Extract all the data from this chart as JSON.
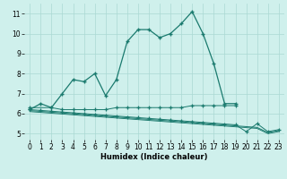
{
  "xlabel": "Humidex (Indice chaleur)",
  "x": [
    0,
    1,
    2,
    3,
    4,
    5,
    6,
    7,
    8,
    9,
    10,
    11,
    12,
    13,
    14,
    15,
    16,
    17,
    18,
    19,
    20,
    21,
    22,
    23
  ],
  "line1_y": [
    6.2,
    6.5,
    6.3,
    7.0,
    7.7,
    7.6,
    8.0,
    6.9,
    7.7,
    9.6,
    10.2,
    10.2,
    9.8,
    10.0,
    10.5,
    11.1,
    10.0,
    8.5,
    6.5,
    6.5,
    null,
    null,
    null,
    null
  ],
  "line2_y": [
    6.3,
    null,
    6.3,
    6.2,
    6.2,
    6.2,
    6.2,
    6.2,
    6.3,
    6.3,
    6.3,
    6.3,
    6.3,
    6.3,
    6.3,
    6.4,
    6.4,
    6.4,
    6.4,
    6.4,
    null,
    null,
    null,
    null
  ],
  "line3_y": [
    6.2,
    6.16,
    6.12,
    6.08,
    6.04,
    6.0,
    5.96,
    5.92,
    5.88,
    5.84,
    5.8,
    5.76,
    5.72,
    5.68,
    5.64,
    5.6,
    5.56,
    5.52,
    5.48,
    5.44,
    5.1,
    5.5,
    5.1,
    5.2
  ],
  "line4_y": [
    6.15,
    6.11,
    6.07,
    6.03,
    5.99,
    5.95,
    5.91,
    5.87,
    5.83,
    5.79,
    5.75,
    5.71,
    5.67,
    5.63,
    5.59,
    5.55,
    5.51,
    5.47,
    5.43,
    5.39,
    5.35,
    5.31,
    5.05,
    5.15
  ],
  "line5_y": [
    6.1,
    6.06,
    6.02,
    5.98,
    5.94,
    5.9,
    5.86,
    5.82,
    5.78,
    5.74,
    5.7,
    5.66,
    5.62,
    5.58,
    5.54,
    5.5,
    5.46,
    5.42,
    5.38,
    5.34,
    5.3,
    5.26,
    5.0,
    5.1
  ],
  "background": "#cff0ec",
  "line_color": "#1a7a6e",
  "grid_color": "#aad8d3",
  "ylim": [
    4.7,
    11.5
  ],
  "xlim": [
    -0.5,
    23.5
  ],
  "yticks": [
    5,
    6,
    7,
    8,
    9,
    10,
    11
  ],
  "xticks": [
    0,
    1,
    2,
    3,
    4,
    5,
    6,
    7,
    8,
    9,
    10,
    11,
    12,
    13,
    14,
    15,
    16,
    17,
    18,
    19,
    20,
    21,
    22,
    23
  ],
  "tick_fontsize": 5.5,
  "xlabel_fontsize": 6.0
}
